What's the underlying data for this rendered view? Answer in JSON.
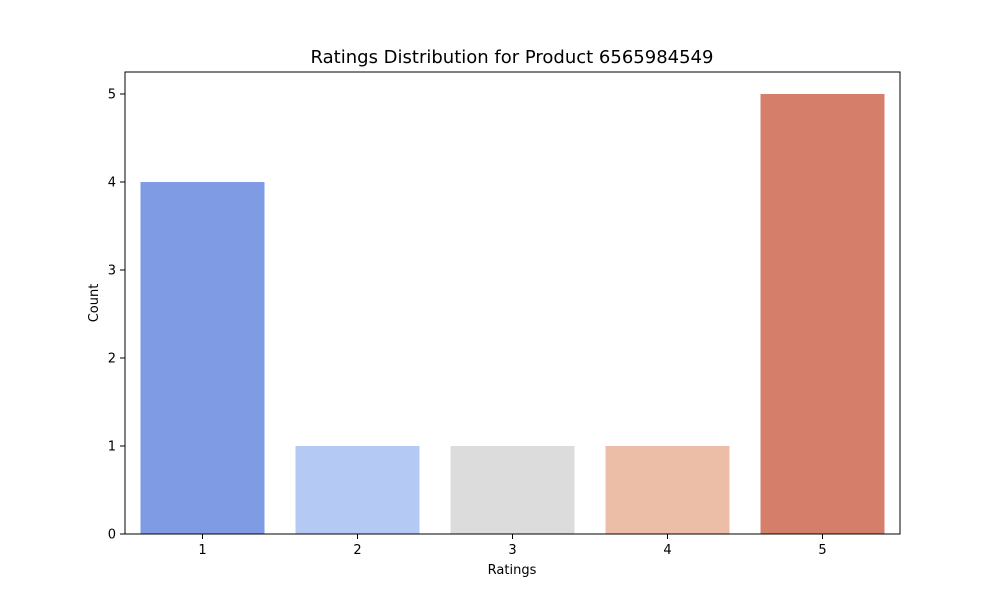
{
  "chart_data": {
    "type": "bar",
    "title": "Ratings Distribution for Product 6565984549",
    "xlabel": "Ratings",
    "ylabel": "Count",
    "categories": [
      "1",
      "2",
      "3",
      "4",
      "5"
    ],
    "values": [
      4,
      1,
      1,
      1,
      5
    ],
    "colors": [
      "#7f9be4",
      "#b4c9f4",
      "#dcdcdc",
      "#ecbda7",
      "#d57f6b"
    ],
    "ylim": [
      0,
      5.25
    ],
    "yticks": [
      0,
      1,
      2,
      3,
      4,
      5
    ],
    "grid": false,
    "legend": "none"
  }
}
